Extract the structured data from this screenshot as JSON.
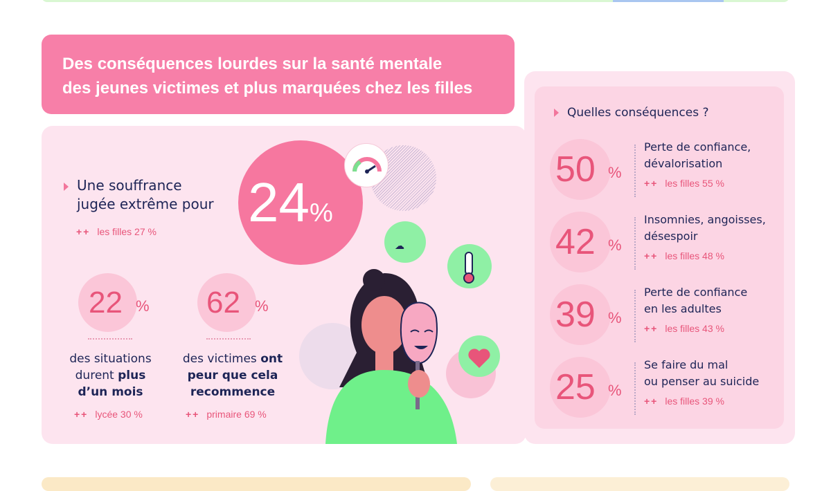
{
  "title": {
    "line1": "Des conséquences lourdes sur la santé mentale",
    "line2": "des jeunes victimes et plus marquées chez les filles"
  },
  "colors": {
    "title_bg": "#f77fa8",
    "panel_bg": "#fde4ef",
    "accent": "#e8557a",
    "text": "#1d2456"
  },
  "left": {
    "headline": {
      "line1": "Une souffrance",
      "line2": "jugée extrême pour",
      "value": "24",
      "unit": "%",
      "plus": "++",
      "note": "les filles 27 %",
      "icon": "gauge-icon"
    },
    "stats": [
      {
        "value": "22",
        "unit": "%",
        "text_normal": "des situations durent ",
        "text_bold": "plus d’un mois",
        "plus": "++",
        "note": "lycée 30 %"
      },
      {
        "value": "62",
        "unit": "%",
        "text_normal": "des victimes ",
        "text_bold": "ont peur que cela recommence",
        "plus": "++",
        "note": "primaire 69 %"
      }
    ],
    "illustration_icons": [
      "storm-cloud-icon",
      "thermometer-icon",
      "broken-heart-icon",
      "girl-with-mask-illustration"
    ]
  },
  "right": {
    "heading": "Quelles conséquences ?",
    "items": [
      {
        "value": "50",
        "unit": "%",
        "line1": "Perte de confiance,",
        "line2": "dévalorisation",
        "plus": "++",
        "note": "les filles 55 %"
      },
      {
        "value": "42",
        "unit": "%",
        "line1": "Insomnies, angoisses,",
        "line2": "désespoir",
        "plus": "++",
        "note": "les filles 48 %"
      },
      {
        "value": "39",
        "unit": "%",
        "line1": "Perte de confiance",
        "line2": "en les adultes",
        "plus": "++",
        "note": "les filles 43 %"
      },
      {
        "value": "25",
        "unit": "%",
        "line1": "Se faire du mal",
        "line2": "ou penser au suicide",
        "plus": "++",
        "note": "les filles 39 %"
      }
    ]
  }
}
